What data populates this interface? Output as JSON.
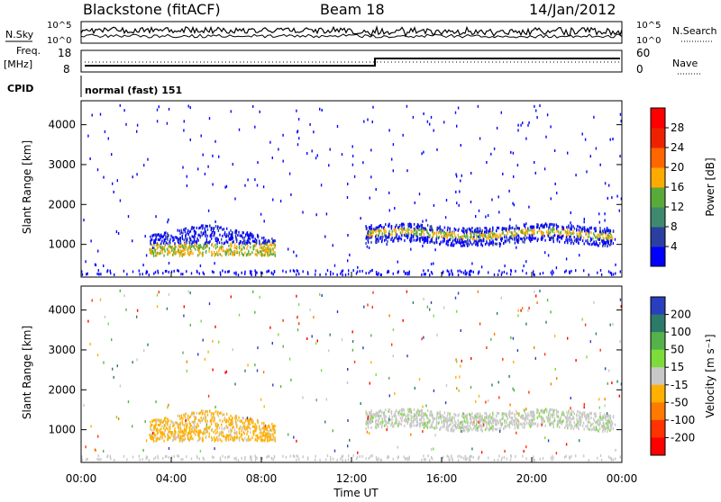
{
  "header": {
    "station": "Blackstone (fitACF)",
    "beam": "Beam 18",
    "date": "14/Jan/2012"
  },
  "noise_panel": {
    "left_label": "N.Sky",
    "right_label": "N.Search",
    "left_ticks": [
      "10^5",
      "10^0"
    ],
    "right_ticks": [
      "10^5",
      "10^0"
    ]
  },
  "freq_panel": {
    "left_label_1": "Freq.",
    "left_label_2": "[MHz]",
    "left_ticks": [
      "18",
      "8"
    ],
    "right_label": "Nave",
    "right_ticks": [
      "60",
      "0"
    ]
  },
  "cpid_panel": {
    "label": "CPID",
    "program": "normal (fast) 151"
  },
  "colors": {
    "power": [
      "#0000ff",
      "#2a3fa0",
      "#3f8a6e",
      "#5aaa3a",
      "#ffaa00",
      "#ff6600",
      "#ee2200",
      "#ff0000"
    ],
    "velocity": [
      "#2a3fbf",
      "#2c7a6a",
      "#55b24a",
      "#7ddc3a",
      "#c8c8c8",
      "#ffb000",
      "#ff7a00",
      "#ff3300",
      "#ff0000"
    ]
  },
  "chart_data": [
    {
      "type": "heatmap",
      "title": "Power",
      "ylabel": "Slant Range [km]",
      "yticks": [
        "4000",
        "3000",
        "2000",
        "1000"
      ],
      "ylim": [
        180,
        4600
      ],
      "xlim": [
        0,
        24
      ],
      "colorbar": {
        "label": "Power [dB]",
        "ticks": [
          "28",
          "24",
          "20",
          "16",
          "12",
          "8",
          "4"
        ],
        "range": [
          0,
          32
        ]
      }
    },
    {
      "type": "heatmap",
      "title": "Velocity",
      "ylabel": "Slant Range [km]",
      "xlabel": "Time UT",
      "yticks": [
        "4000",
        "3000",
        "2000",
        "1000"
      ],
      "xticks": [
        "00:00",
        "04:00",
        "08:00",
        "12:00",
        "16:00",
        "20:00",
        "00:00"
      ],
      "ylim": [
        180,
        4600
      ],
      "xlim": [
        0,
        24
      ],
      "colorbar": {
        "label": "Velocity [m s⁻¹]",
        "ticks": [
          "200",
          "100",
          "50",
          "15",
          "-15",
          "-50",
          "-100",
          "-200"
        ]
      }
    }
  ]
}
